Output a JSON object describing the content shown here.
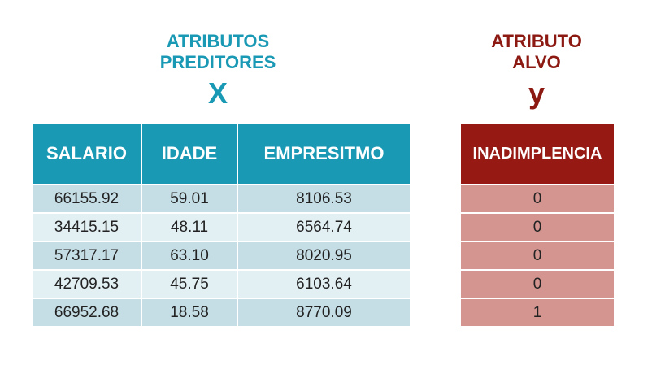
{
  "predictors": {
    "title_line1": "ATRIBUTOS",
    "title_line2": "PREDITORES",
    "symbol": "X",
    "color": "#1a99b5",
    "columns": [
      "SALARIO",
      "IDADE",
      "EMPRESITMO"
    ],
    "rows": [
      [
        "66155.92",
        "59.01",
        "8106.53"
      ],
      [
        "34415.15",
        "48.11",
        "6564.74"
      ],
      [
        "57317.17",
        "63.10",
        "8020.95"
      ],
      [
        "42709.53",
        "45.75",
        "6103.64"
      ],
      [
        "66952.68",
        "18.58",
        "8770.09"
      ]
    ]
  },
  "target": {
    "title_line1": "ATRIBUTO",
    "title_line2": "ALVO",
    "symbol": "y",
    "color": "#961a13",
    "column": "INADIMPLENCIA",
    "values": [
      "0",
      "0",
      "0",
      "0",
      "1"
    ]
  }
}
